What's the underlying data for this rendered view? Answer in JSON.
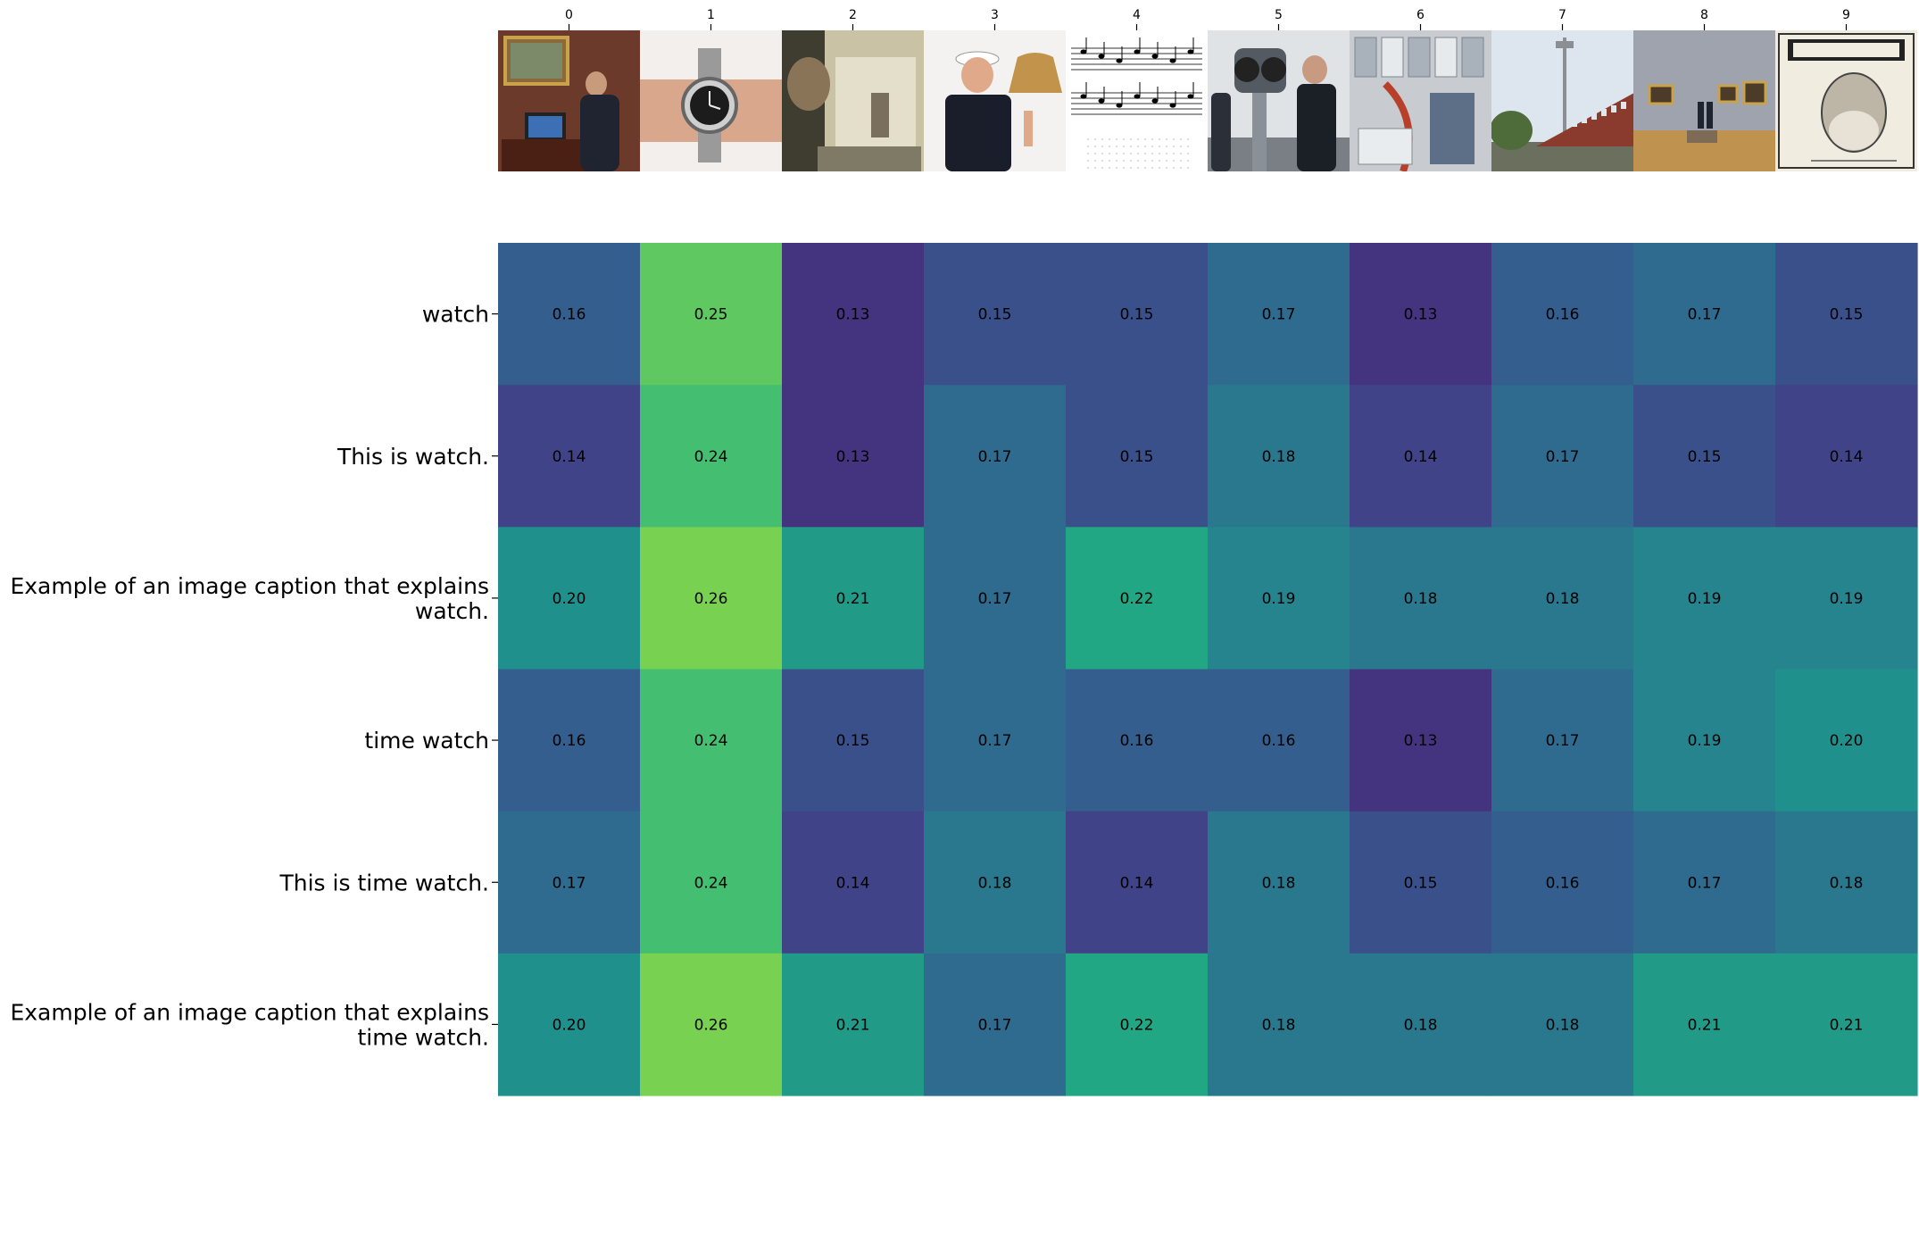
{
  "chart_data": {
    "type": "heatmap",
    "title": "",
    "xlabel": "",
    "ylabel": "",
    "x_tick_labels": [
      "0",
      "1",
      "2",
      "3",
      "4",
      "5",
      "6",
      "7",
      "8",
      "9"
    ],
    "column_images": [
      "man-in-suit-at-desk-with-monitor-and-painting",
      "wristwatch-on-wrist",
      "man-in-office-hallway",
      "sailor-ringing-ship-bell",
      "sheet-music-score",
      "people-at-coin-operated-binoculars",
      "astronaut-inside-space-station-module",
      "building-with-tall-antenna-mast",
      "art-gallery-room-with-paintings",
      "time-magazine-cover-portrait"
    ],
    "rows": [
      {
        "label_lines": [
          "watch"
        ],
        "values": [
          0.16,
          0.25,
          0.13,
          0.15,
          0.15,
          0.17,
          0.13,
          0.16,
          0.17,
          0.15
        ],
        "value_labels": [
          "0.16",
          "0.25",
          "0.13",
          "0.15",
          "0.15",
          "0.17",
          "0.13",
          "0.16",
          "0.17",
          "0.15"
        ]
      },
      {
        "label_lines": [
          "This is watch."
        ],
        "values": [
          0.14,
          0.24,
          0.13,
          0.17,
          0.15,
          0.18,
          0.14,
          0.17,
          0.15,
          0.14
        ],
        "value_labels": [
          "0.14",
          "0.24",
          "0.13",
          "0.17",
          "0.15",
          "0.18",
          "0.14",
          "0.17",
          "0.15",
          "0.14"
        ]
      },
      {
        "label_lines": [
          "Example of an image caption that explains",
          "watch."
        ],
        "values": [
          0.2,
          0.26,
          0.21,
          0.17,
          0.22,
          0.19,
          0.18,
          0.18,
          0.19,
          0.19
        ],
        "value_labels": [
          "0.20",
          "0.26",
          "0.21",
          "0.17",
          "0.22",
          "0.19",
          "0.18",
          "0.18",
          "0.19",
          "0.19"
        ]
      },
      {
        "label_lines": [
          "time watch"
        ],
        "values": [
          0.16,
          0.24,
          0.15,
          0.17,
          0.16,
          0.16,
          0.13,
          0.17,
          0.19,
          0.2
        ],
        "value_labels": [
          "0.16",
          "0.24",
          "0.15",
          "0.17",
          "0.16",
          "0.16",
          "0.13",
          "0.17",
          "0.19",
          "0.20"
        ]
      },
      {
        "label_lines": [
          "This is time watch."
        ],
        "values": [
          0.17,
          0.24,
          0.14,
          0.18,
          0.14,
          0.18,
          0.15,
          0.16,
          0.17,
          0.18
        ],
        "value_labels": [
          "0.17",
          "0.24",
          "0.14",
          "0.18",
          "0.14",
          "0.18",
          "0.15",
          "0.16",
          "0.17",
          "0.18"
        ]
      },
      {
        "label_lines": [
          "Example of an image caption that explains",
          "time watch."
        ],
        "values": [
          0.2,
          0.26,
          0.21,
          0.17,
          0.22,
          0.18,
          0.18,
          0.18,
          0.21,
          0.21
        ],
        "value_labels": [
          "0.20",
          "0.26",
          "0.21",
          "0.17",
          "0.22",
          "0.18",
          "0.18",
          "0.18",
          "0.21",
          "0.21"
        ]
      }
    ],
    "colormap": "viridis",
    "color_range": [
      0.1,
      0.3
    ],
    "grid": false,
    "legend": "none"
  }
}
